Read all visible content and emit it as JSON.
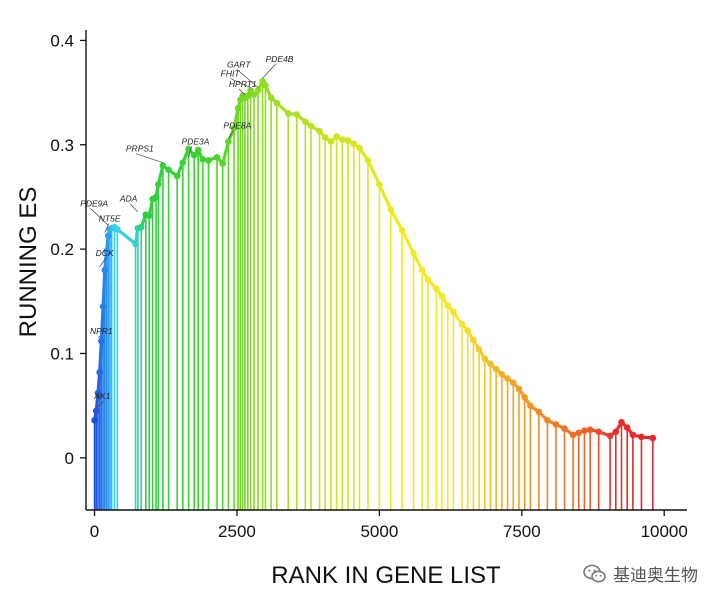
{
  "chart_data": {
    "type": "line",
    "xlabel": "RANK IN GENE LIST",
    "ylabel": "RUNNING ES",
    "xlim": [
      -150,
      10400
    ],
    "ylim": [
      -0.05,
      0.41
    ],
    "x_ticks": [
      0,
      2500,
      5000,
      7500,
      10000
    ],
    "x_tick_labels": [
      "0",
      "2500",
      "5000",
      "7500",
      "10000"
    ],
    "y_ticks": [
      0,
      0.1,
      0.2,
      0.3,
      0.4
    ],
    "y_tick_labels": [
      "0",
      "0.1",
      "0.2",
      "0.3",
      "0.4"
    ],
    "grid": false,
    "series": [
      {
        "x": [
          0,
          30,
          60,
          90,
          120,
          150,
          180,
          210,
          240,
          270,
          300,
          350,
          400,
          720,
          760,
          820,
          900,
          960,
          1020,
          1080,
          1120,
          1200,
          1300,
          1450,
          1550,
          1650,
          1750,
          1820,
          1900,
          2000,
          2150,
          2250,
          2350,
          2450,
          2520,
          2560,
          2600,
          2640,
          2690,
          2740,
          2800,
          2870,
          2950,
          3000,
          3100,
          3200,
          3400,
          3550,
          3700,
          3800,
          3950,
          4050,
          4150,
          4250,
          4350,
          4450,
          4550,
          4650,
          4800,
          5000,
          5200,
          5400,
          5600,
          5750,
          5850,
          6000,
          6100,
          6200,
          6300,
          6450,
          6550,
          6650,
          6750,
          6850,
          6950,
          7050,
          7150,
          7250,
          7350,
          7450,
          7550,
          7650,
          7800,
          7950,
          8100,
          8250,
          8400,
          8500,
          8600,
          8700,
          8850,
          9050,
          9150,
          9250,
          9350,
          9450,
          9600,
          9800
        ],
        "y": [
          0.036,
          0.045,
          0.062,
          0.082,
          0.112,
          0.145,
          0.18,
          0.198,
          0.213,
          0.219,
          0.22,
          0.221,
          0.219,
          0.205,
          0.22,
          0.221,
          0.233,
          0.232,
          0.248,
          0.25,
          0.262,
          0.28,
          0.276,
          0.27,
          0.283,
          0.296,
          0.29,
          0.295,
          0.286,
          0.285,
          0.288,
          0.282,
          0.303,
          0.316,
          0.335,
          0.343,
          0.347,
          0.345,
          0.347,
          0.352,
          0.348,
          0.352,
          0.361,
          0.357,
          0.345,
          0.34,
          0.33,
          0.329,
          0.322,
          0.318,
          0.313,
          0.307,
          0.303,
          0.308,
          0.305,
          0.304,
          0.301,
          0.297,
          0.285,
          0.262,
          0.238,
          0.218,
          0.196,
          0.18,
          0.171,
          0.162,
          0.155,
          0.146,
          0.14,
          0.128,
          0.122,
          0.113,
          0.104,
          0.095,
          0.09,
          0.085,
          0.08,
          0.076,
          0.072,
          0.066,
          0.058,
          0.05,
          0.044,
          0.036,
          0.032,
          0.028,
          0.022,
          0.024,
          0.026,
          0.027,
          0.025,
          0.021,
          0.025,
          0.034,
          0.029,
          0.022,
          0.02,
          0.019
        ]
      }
    ],
    "gene_labels": [
      {
        "text": "AK1",
        "x": 30,
        "y": 0.045
      },
      {
        "text": "NPR1",
        "x": 60,
        "y": 0.112
      },
      {
        "text": "DCK",
        "x": 90,
        "y": 0.18
      },
      {
        "text": "NT5E",
        "x": 180,
        "y": 0.213
      },
      {
        "text": "PDE9A",
        "x": 240,
        "y": 0.22
      },
      {
        "text": "ADA",
        "x": 760,
        "y": 0.233
      },
      {
        "text": "PRPS1",
        "x": 1200,
        "y": 0.28
      },
      {
        "text": "PDE3A",
        "x": 1650,
        "y": 0.285
      },
      {
        "text": "PDE8A",
        "x": 2350,
        "y": 0.303
      },
      {
        "text": "HPRT1",
        "x": 2640,
        "y": 0.345
      },
      {
        "text": "FHIT",
        "x": 2740,
        "y": 0.352
      },
      {
        "text": "GART",
        "x": 2870,
        "y": 0.352
      },
      {
        "text": "PDE4B",
        "x": 2950,
        "y": 0.361
      }
    ]
  },
  "watermark": {
    "text": "基迪奥生物",
    "icon": "wechat-icon"
  }
}
